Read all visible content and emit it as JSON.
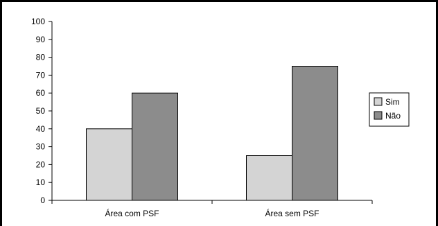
{
  "chart_data": {
    "type": "bar",
    "categories": [
      "Área com PSF",
      "Área sem PSF"
    ],
    "series": [
      {
        "name": "Sim",
        "values": [
          40,
          25
        ],
        "color": "#d4d4d4"
      },
      {
        "name": "Não",
        "values": [
          60,
          75
        ],
        "color": "#8c8c8c"
      }
    ],
    "ylim": [
      0,
      100
    ],
    "yticks": [
      0,
      10,
      20,
      30,
      40,
      50,
      60,
      70,
      80,
      90,
      100
    ],
    "legend_position": "right",
    "grid": false
  }
}
